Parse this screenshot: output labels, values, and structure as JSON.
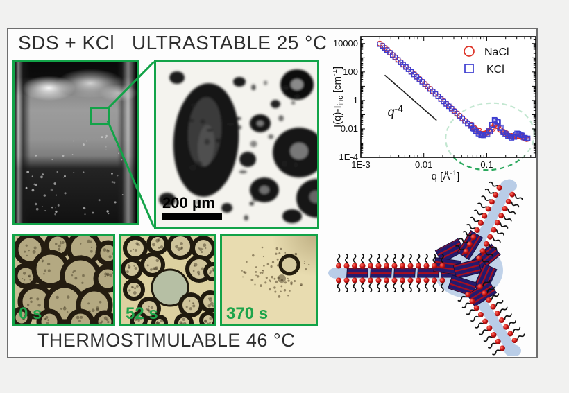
{
  "header": {
    "title": "SDS + KCl   ULTRASTABLE 25 °C"
  },
  "footer": {
    "title": "THERMOSTIMULABLE 46 °C"
  },
  "micrograph": {
    "scale_bar_label": "200 μm"
  },
  "timelapse": {
    "frames": [
      {
        "label": "0 s"
      },
      {
        "label": "52 s"
      },
      {
        "label": "370 s"
      }
    ]
  },
  "colors": {
    "green_accent": "#12a348",
    "green_text": "#1ea44b",
    "nacl_marker": "#dd3226",
    "kcl_marker": "#3d3dd0",
    "highlight_ellipse": "#2aa85c",
    "arm_blue": "#b9cde7",
    "bead_red": "#cc1414",
    "slab_navy": "#241a6e",
    "slab_stripe": "#a80f1e"
  },
  "chart_data": {
    "type": "scatter",
    "x_scale": "log",
    "y_scale": "log",
    "title": "",
    "xlabel": "q [Å⁻¹]",
    "ylabel": "I(q)-I_inc [cm⁻¹]",
    "xlabel_parts": [
      {
        "t": "q [Å"
      },
      {
        "t": "-1",
        "sup": true
      },
      {
        "t": "]"
      }
    ],
    "ylabel_parts": [
      {
        "t": "I(q)-I"
      },
      {
        "t": "inc",
        "sub": true
      },
      {
        "t": " [cm"
      },
      {
        "t": "-1",
        "sup": true
      },
      {
        "t": "]"
      }
    ],
    "annotation": "q⁻⁴",
    "annotation_parts": [
      {
        "t": "q",
        "italic": true
      },
      {
        "t": "-4",
        "sup": true
      }
    ],
    "xlim": [
      0.001,
      0.6
    ],
    "ylim": [
      0.0001,
      30000
    ],
    "x_ticks": [
      {
        "label": "1E-3",
        "value": 0.001
      },
      {
        "label": "0.01",
        "value": 0.01
      },
      {
        "label": "0.1",
        "value": 0.1
      }
    ],
    "y_ticks": [
      {
        "label": "10000",
        "value": 10000
      },
      {
        "label": "100",
        "value": 100
      },
      {
        "label": "1",
        "value": 1
      },
      {
        "label": "0.01",
        "value": 0.01
      },
      {
        "label": "1E-4",
        "value": 0.0001
      }
    ],
    "grid": false,
    "legend_position": "top-right",
    "legend": [
      {
        "label": "NaCl",
        "marker": "circle",
        "color": "#dd3226"
      },
      {
        "label": "KCl",
        "marker": "square",
        "color": "#3d3dd0"
      }
    ],
    "slope_guide": {
      "x1": 0.0024,
      "y1": 60,
      "x2": 0.016,
      "y2": 0.04
    },
    "series": [
      {
        "name": "NaCl",
        "points": [
          [
            0.002,
            10000
          ],
          [
            0.0022,
            7200
          ],
          [
            0.0024,
            5000
          ],
          [
            0.0026,
            3700
          ],
          [
            0.0029,
            2400
          ],
          [
            0.0032,
            1600
          ],
          [
            0.0035,
            1120
          ],
          [
            0.0039,
            730
          ],
          [
            0.0043,
            490
          ],
          [
            0.0047,
            345
          ],
          [
            0.0052,
            230
          ],
          [
            0.0057,
            160
          ],
          [
            0.0063,
            107
          ],
          [
            0.007,
            70
          ],
          [
            0.0077,
            48
          ],
          [
            0.0085,
            32
          ],
          [
            0.0094,
            21.5
          ],
          [
            0.0104,
            14.4
          ],
          [
            0.0114,
            9.8
          ],
          [
            0.0126,
            6.6
          ],
          [
            0.0139,
            4.4
          ],
          [
            0.0153,
            3.0
          ],
          [
            0.0169,
            2.0
          ],
          [
            0.0187,
            1.31
          ],
          [
            0.0206,
            0.89
          ],
          [
            0.0227,
            0.6
          ],
          [
            0.025,
            0.41
          ],
          [
            0.0276,
            0.275
          ],
          [
            0.0305,
            0.185
          ],
          [
            0.0336,
            0.125
          ],
          [
            0.0371,
            0.084
          ],
          [
            0.0409,
            0.057
          ],
          [
            0.0451,
            0.038
          ],
          [
            0.0498,
            0.026
          ],
          [
            0.0549,
            0.018
          ],
          [
            0.0606,
            0.0125
          ],
          [
            0.0668,
            0.0085
          ],
          [
            0.0737,
            0.006
          ],
          [
            0.0813,
            0.0047
          ],
          [
            0.0897,
            0.0046
          ],
          [
            0.099,
            0.0052
          ],
          [
            0.1092,
            0.0072
          ],
          [
            0.1204,
            0.0115
          ],
          [
            0.1328,
            0.0185
          ],
          [
            0.1465,
            0.0155
          ],
          [
            0.1616,
            0.0085
          ],
          [
            0.1783,
            0.0058
          ],
          [
            0.1967,
            0.0045
          ],
          [
            0.2169,
            0.0036
          ],
          [
            0.2393,
            0.0031
          ],
          [
            0.264,
            0.0029
          ],
          [
            0.2912,
            0.0031
          ],
          [
            0.3212,
            0.003
          ],
          [
            0.3543,
            0.0027
          ],
          [
            0.3908,
            0.0022
          ],
          [
            0.4311,
            0.0019
          ]
        ]
      },
      {
        "name": "KCl",
        "points": [
          [
            0.002,
            9000
          ],
          [
            0.0022,
            6800
          ],
          [
            0.0024,
            4700
          ],
          [
            0.0026,
            3450
          ],
          [
            0.0029,
            2250
          ],
          [
            0.0032,
            1520
          ],
          [
            0.0035,
            1060
          ],
          [
            0.0039,
            700
          ],
          [
            0.0043,
            465
          ],
          [
            0.0047,
            325
          ],
          [
            0.0052,
            220
          ],
          [
            0.0057,
            152
          ],
          [
            0.0063,
            101
          ],
          [
            0.007,
            66
          ],
          [
            0.0077,
            45
          ],
          [
            0.0085,
            30
          ],
          [
            0.0094,
            20.4
          ],
          [
            0.0104,
            13.6
          ],
          [
            0.0114,
            9.2
          ],
          [
            0.0126,
            6.2
          ],
          [
            0.0139,
            4.15
          ],
          [
            0.0153,
            2.82
          ],
          [
            0.0169,
            1.9
          ],
          [
            0.0187,
            1.24
          ],
          [
            0.0206,
            0.84
          ],
          [
            0.0227,
            0.565
          ],
          [
            0.025,
            0.385
          ],
          [
            0.0276,
            0.26
          ],
          [
            0.0305,
            0.172
          ],
          [
            0.0336,
            0.116
          ],
          [
            0.0371,
            0.078
          ],
          [
            0.0409,
            0.052
          ],
          [
            0.0451,
            0.035
          ],
          [
            0.0498,
            0.023
          ],
          [
            0.0549,
            0.016
          ],
          [
            0.0606,
            0.0105
          ],
          [
            0.0668,
            0.0068
          ],
          [
            0.0737,
            0.0046
          ],
          [
            0.0813,
            0.0035
          ],
          [
            0.0897,
            0.0034
          ],
          [
            0.099,
            0.0042
          ],
          [
            0.1092,
            0.0078
          ],
          [
            0.1204,
            0.02
          ],
          [
            0.1328,
            0.044
          ],
          [
            0.1465,
            0.033
          ],
          [
            0.1616,
            0.011
          ],
          [
            0.1783,
            0.0058
          ],
          [
            0.1967,
            0.004
          ],
          [
            0.2169,
            0.0032
          ],
          [
            0.2393,
            0.0028
          ],
          [
            0.264,
            0.0027
          ],
          [
            0.2912,
            0.004
          ],
          [
            0.3212,
            0.0046
          ],
          [
            0.3543,
            0.0036
          ],
          [
            0.3908,
            0.0024
          ],
          [
            0.4311,
            0.002
          ]
        ]
      }
    ]
  },
  "schematic": {
    "description": "Three-armed foam film junction (Plateau border) coated with SDS surfactant: red head groups, black alkyl tails, navy striped crystalline platelets inside blue aqueous channels"
  }
}
